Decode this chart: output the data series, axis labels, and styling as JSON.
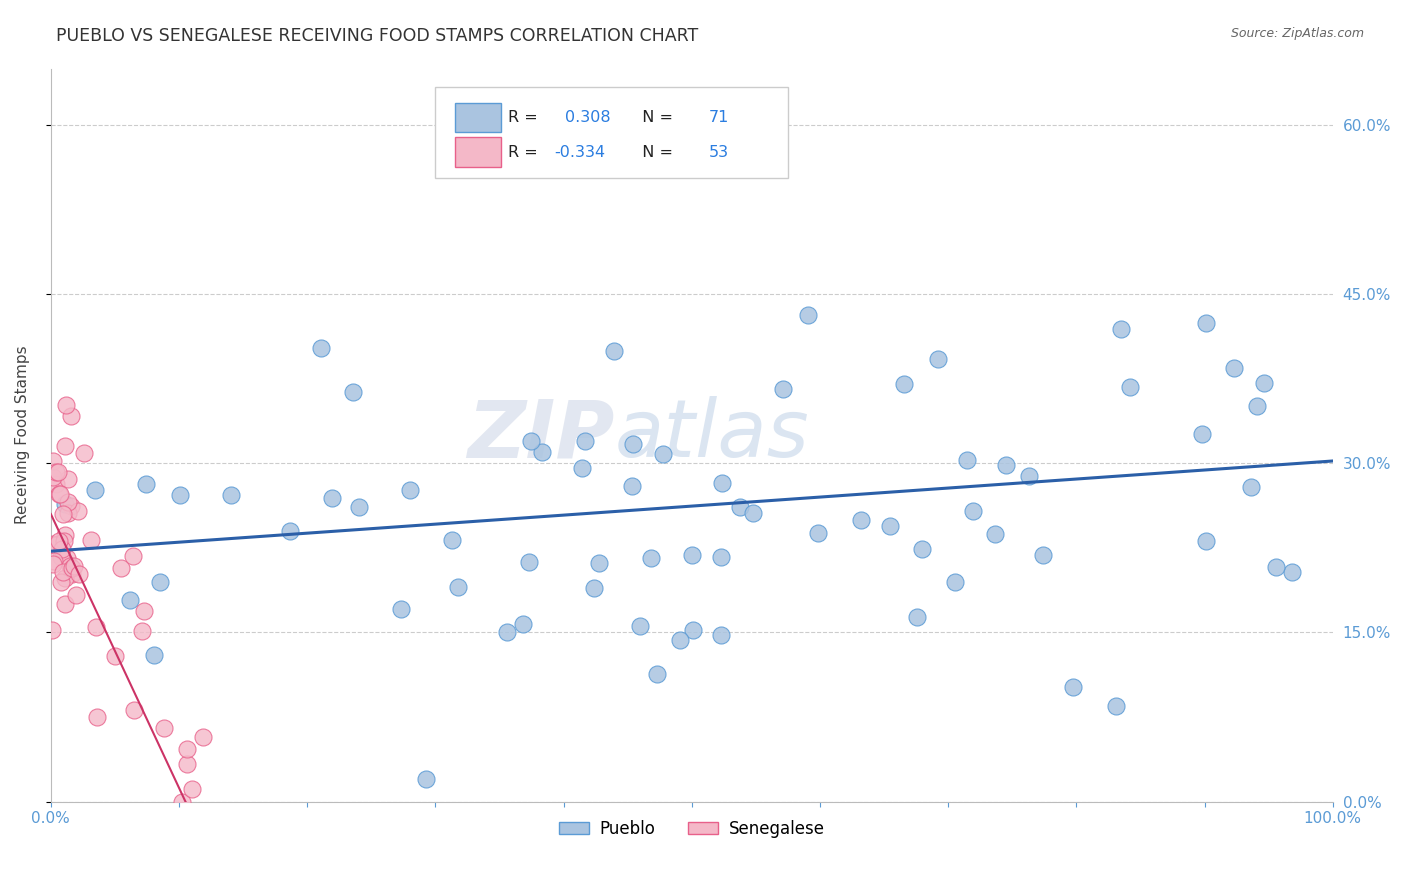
{
  "title": "PUEBLO VS SENEGALESE RECEIVING FOOD STAMPS CORRELATION CHART",
  "source": "Source: ZipAtlas.com",
  "ylabel": "Receiving Food Stamps",
  "xlim": [
    0.0,
    1.0
  ],
  "ylim": [
    0.0,
    0.65
  ],
  "xticks": [
    0.0,
    0.1,
    0.2,
    0.3,
    0.4,
    0.5,
    0.6,
    0.7,
    0.8,
    0.9,
    1.0
  ],
  "yticks": [
    0.0,
    0.15,
    0.3,
    0.45,
    0.6
  ],
  "xtick_labels": [
    "0.0%",
    "",
    "",
    "",
    "",
    "",
    "",
    "",
    "",
    "",
    "100.0%"
  ],
  "ytick_labels_right": [
    "0.0%",
    "15.0%",
    "30.0%",
    "45.0%",
    "60.0%"
  ],
  "pueblo_R": 0.308,
  "pueblo_N": 71,
  "senegalese_R": -0.334,
  "senegalese_N": 53,
  "blue_color": "#aac4e0",
  "blue_edge": "#5b9bd5",
  "pink_color": "#f4b8c8",
  "pink_edge": "#e8608a",
  "blue_line_color": "#2b5fa8",
  "pink_line_color": "#cc3366",
  "tick_color": "#5b9bd5",
  "watermark_zip": "ZIP",
  "watermark_atlas": "atlas",
  "legend_label_blue": "Pueblo",
  "legend_label_pink": "Senegalese",
  "blue_trend_x0": 0.0,
  "blue_trend_y0": 0.222,
  "blue_trend_x1": 1.0,
  "blue_trend_y1": 0.302,
  "pink_trend_x0": 0.0,
  "pink_trend_y0": 0.255,
  "pink_trend_x1": 0.105,
  "pink_trend_y1": 0.0
}
